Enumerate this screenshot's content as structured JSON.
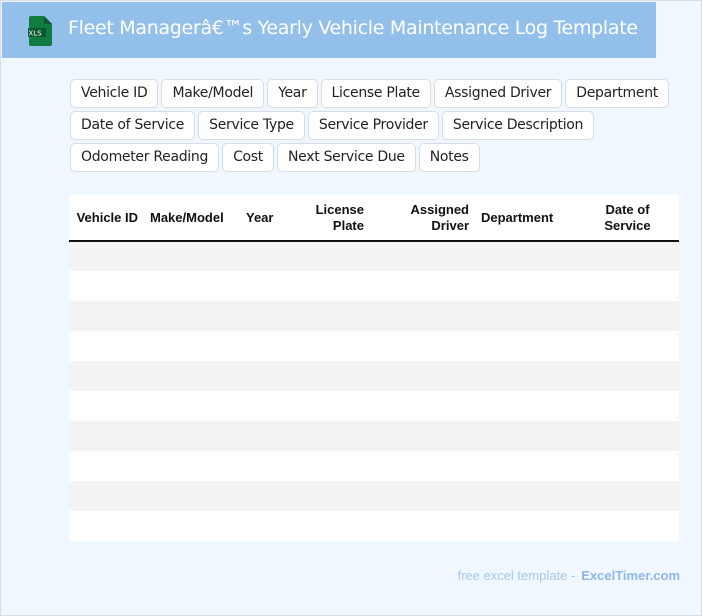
{
  "header": {
    "title": "Fleet Managerâ€™s Yearly Vehicle Maintenance Log Template",
    "icon": "xls-file-icon",
    "icon_label": "XLS",
    "icon_color": "#107c41"
  },
  "fields": [
    [
      "Vehicle ID",
      "Make/Model",
      "Year",
      "License Plate",
      "Assigned Driver",
      "Department"
    ],
    [
      "Date of Service",
      "Service Type",
      "Service Provider",
      "Service Description"
    ],
    [
      "Odometer Reading",
      "Cost",
      "Next Service Due",
      "Notes"
    ]
  ],
  "table": {
    "columns": [
      "Vehicle ID",
      "Make/Model",
      "Year",
      "License Plate",
      "Assigned Driver",
      "Department",
      "Date of Service"
    ],
    "empty_rows": 10
  },
  "footer": {
    "text": "free excel template -",
    "brand": "ExcelTimer.com"
  }
}
